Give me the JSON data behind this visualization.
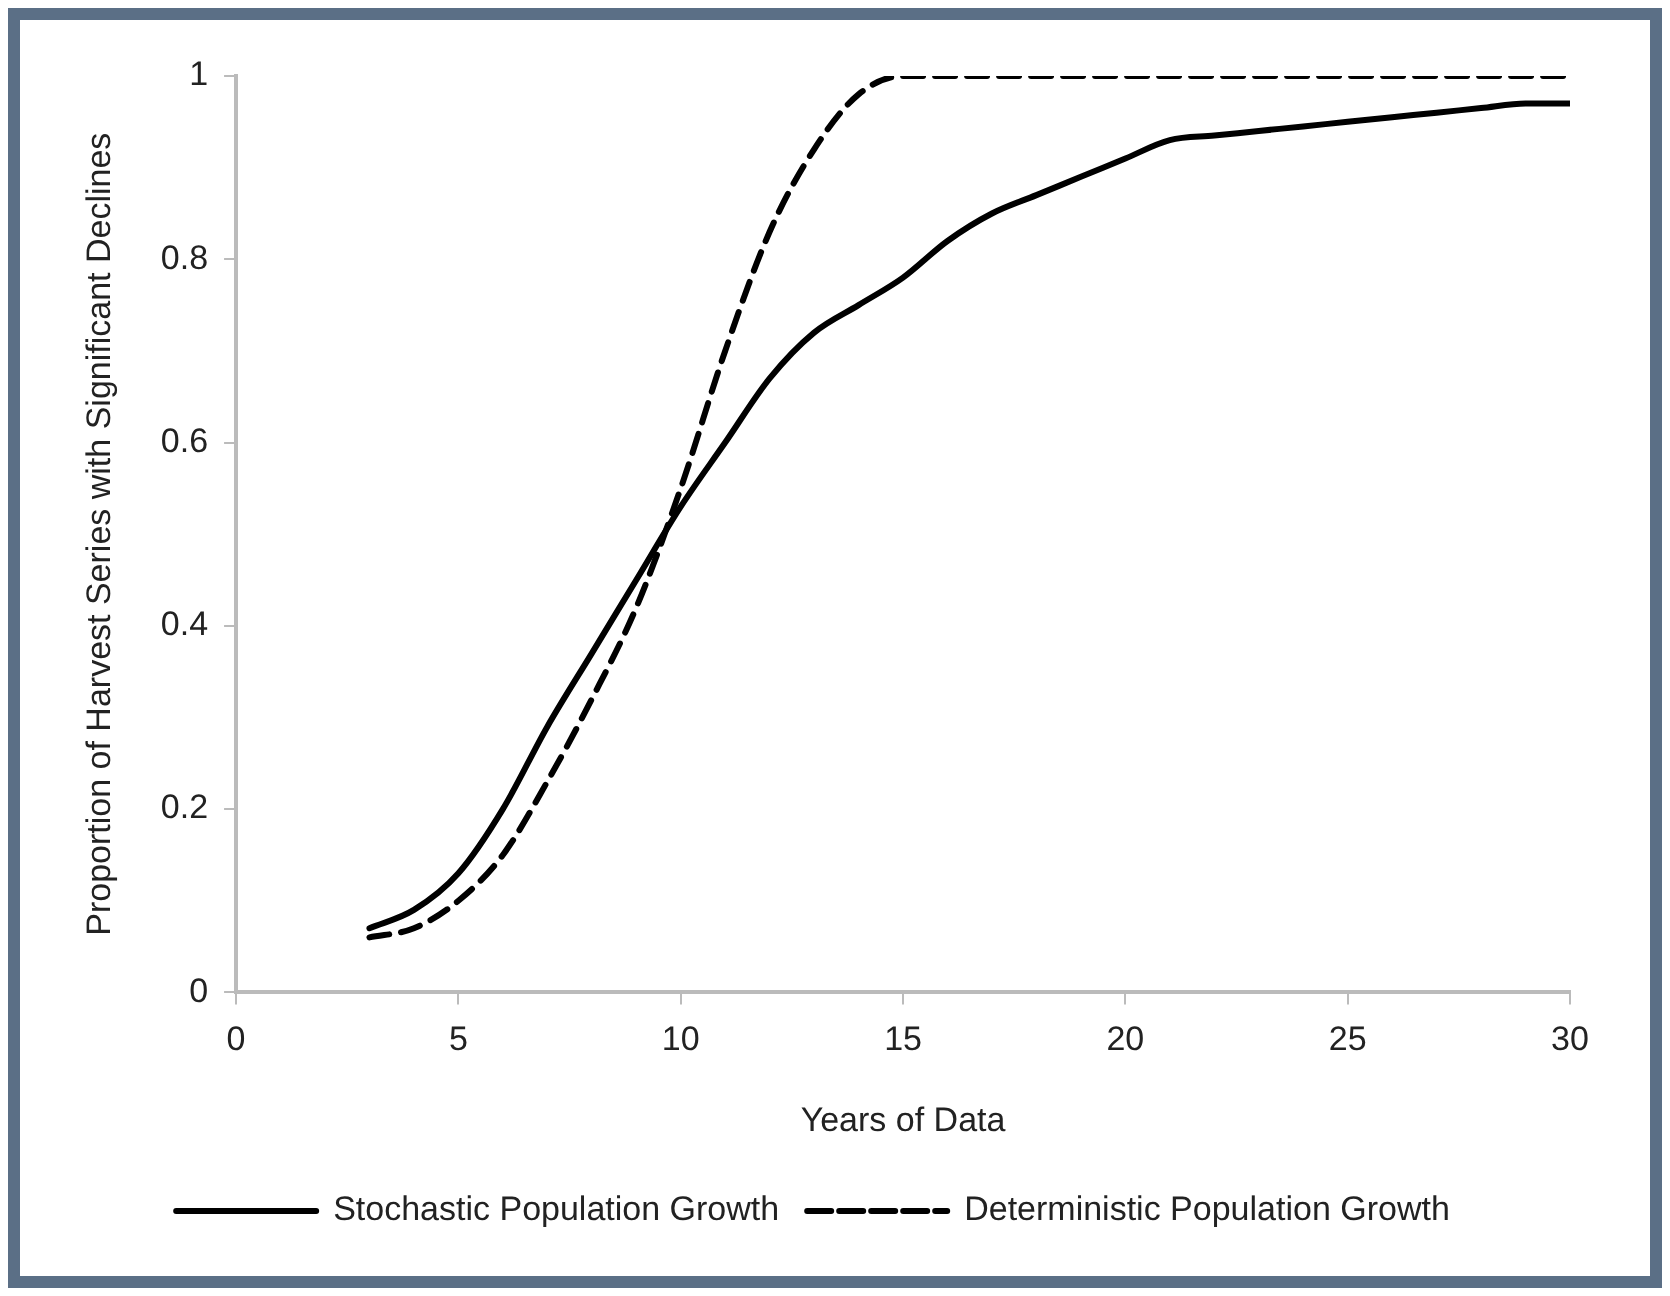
{
  "chart_data": {
    "type": "line",
    "xlabel": "Years of Data",
    "ylabel": "Proportion of Harvest Series with Significant Declines",
    "x": [
      3,
      4,
      5,
      6,
      7,
      8,
      9,
      10,
      11,
      12,
      13,
      14,
      15,
      16,
      17,
      18,
      19,
      20,
      21,
      22,
      23,
      24,
      25,
      26,
      27,
      28,
      29,
      30
    ],
    "series": [
      {
        "name": "Stochastic Population Growth",
        "color": "#000000",
        "line_style": "solid",
        "values": [
          0.07,
          0.09,
          0.13,
          0.2,
          0.29,
          0.37,
          0.45,
          0.53,
          0.6,
          0.67,
          0.72,
          0.75,
          0.78,
          0.82,
          0.85,
          0.87,
          0.89,
          0.91,
          0.93,
          0.935,
          0.94,
          0.945,
          0.95,
          0.955,
          0.96,
          0.965,
          0.97,
          0.97
        ]
      },
      {
        "name": "Deterministic Population Growth",
        "color": "#000000",
        "line_style": "dashed",
        "values": [
          0.06,
          0.07,
          0.1,
          0.15,
          0.23,
          0.32,
          0.42,
          0.55,
          0.7,
          0.83,
          0.92,
          0.98,
          1,
          1,
          1,
          1,
          1,
          1,
          1,
          1,
          1,
          1,
          1,
          1,
          1,
          1,
          1,
          1
        ]
      }
    ],
    "xlim": [
      0,
      30
    ],
    "xticks": [
      0,
      5,
      10,
      15,
      20,
      25,
      30
    ],
    "ylim": [
      0,
      1
    ],
    "yticks": [
      0,
      0.2,
      0.4,
      0.6,
      0.8,
      1
    ],
    "grid": false,
    "legend": "bottom",
    "marker": "none"
  }
}
